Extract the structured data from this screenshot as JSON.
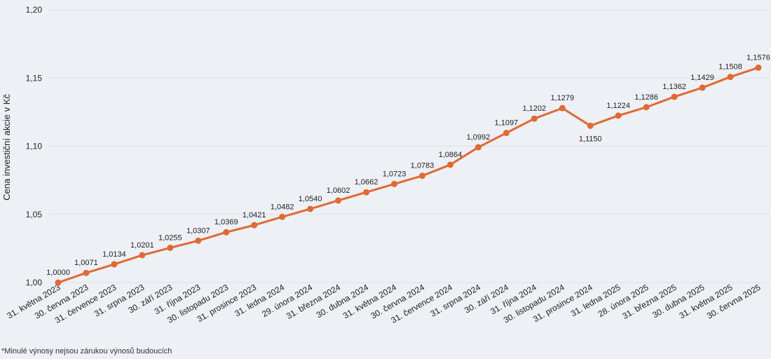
{
  "chart_data": {
    "type": "line",
    "title": "",
    "ylabel": "Cena investiční akcie v Kč",
    "xlabel": "",
    "ylim": [
      1.0,
      1.2
    ],
    "yticks": [
      "1,00",
      "1,05",
      "1,10",
      "1,15",
      "1,20"
    ],
    "ytick_values": [
      1.0,
      1.05,
      1.1,
      1.15,
      1.2
    ],
    "grid": true,
    "legend": "none",
    "categories": [
      "31. května 2023",
      "30. června 2023",
      "31. července 2023",
      "31. srpna 2023",
      "30. září 2023",
      "31. října 2023",
      "30. listopadu 2023",
      "31. prosince 2023",
      "31. ledna 2024",
      "29. února 2024",
      "31. března 2024",
      "30. dubna 2024",
      "31. května 2024",
      "30. června 2024",
      "31. července 2024",
      "31. srpna 2024",
      "30. září 2024",
      "31. října 2024",
      "30. listopadu 2024",
      "31. prosince 2024",
      "31. ledna 2025",
      "28. února 2025",
      "31. března 2025",
      "30. dubna 2025",
      "31. května 2025",
      "30. června 2025"
    ],
    "series": [
      {
        "values": [
          1.0,
          1.0071,
          1.0134,
          1.0201,
          1.0255,
          1.0307,
          1.0369,
          1.0421,
          1.0482,
          1.054,
          1.0602,
          1.0662,
          1.0723,
          1.0783,
          1.0864,
          1.0992,
          1.1097,
          1.1202,
          1.1279,
          1.115,
          1.1224,
          1.1286,
          1.1362,
          1.1429,
          1.1508,
          1.1576
        ],
        "labels": [
          "1,0000",
          "1,0071",
          "1,0134",
          "1,0201",
          "1,0255",
          "1,0307",
          "1,0369",
          "1,0421",
          "1,0482",
          "1,0540",
          "1,0602",
          "1,0662",
          "1,0723",
          "1,0783",
          "1,0864",
          "1,0992",
          "1,1097",
          "1,1202",
          "1,1279",
          "1,1150",
          "1,1224",
          "1,1286",
          "1,1362",
          "1,1429",
          "1,1508",
          "1,1576"
        ],
        "color": "#e06a33"
      }
    ]
  },
  "colors": {
    "line": "#e06a33",
    "grid": "#dde1e8",
    "text": "#222222",
    "background": "#edf0f5"
  },
  "footnote": "*Minulé výnosy nejsou zárukou výnosů budoucích"
}
